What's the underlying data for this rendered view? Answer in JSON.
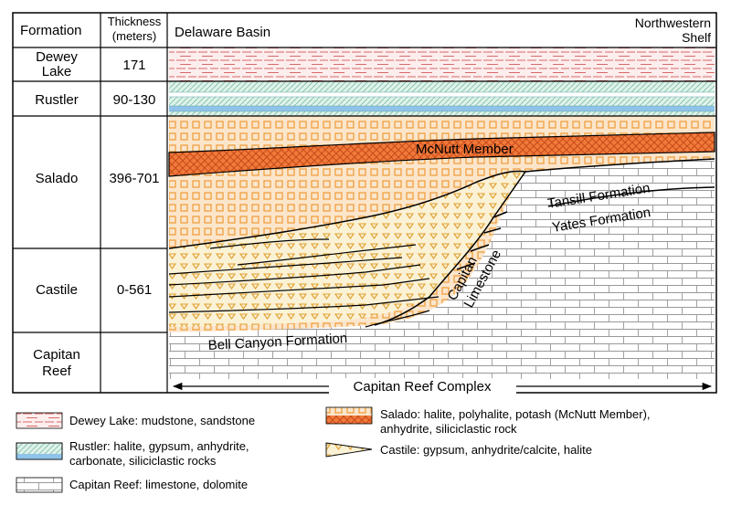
{
  "header": {
    "formation": "Formation",
    "thickness_line1": "Thickness",
    "thickness_line2": "(meters)",
    "left_region": "Delaware Basin",
    "right_region_line1": "Northwestern",
    "right_region_line2": "Shelf"
  },
  "formations": [
    {
      "name_lines": [
        "Dewey",
        "Lake"
      ],
      "thickness": "171"
    },
    {
      "name_lines": [
        "Rustler"
      ],
      "thickness": "90-130"
    },
    {
      "name_lines": [
        "Salado"
      ],
      "thickness": "396-701"
    },
    {
      "name_lines": [
        "Castile"
      ],
      "thickness": "0-561"
    },
    {
      "name_lines": [
        "Capitan",
        "Reef"
      ],
      "thickness": ""
    }
  ],
  "section_labels": {
    "mcnutt": "McNutt Member",
    "tansill": "Tansill Formation",
    "yates": "Yates Formation",
    "capitan_line1": "Capitan",
    "capitan_line2": "Limestone",
    "bell_canyon": "Bell Canyon Formation",
    "reef_complex": "Capitan Reef Complex"
  },
  "legend": {
    "dewey": "Dewey Lake: mudstone, sandstone",
    "rustler_line1": "Rustler: halite, gypsum, anhydrite,",
    "rustler_line2": "carbonate, siliciclastic rocks",
    "capitan": "Capitan Reef: limestone, dolomite",
    "salado_line1": "Salado: halite, polyhalite, potash (McNutt Member),",
    "salado_line2": "anhydrite, siliciclastic rock",
    "castile": "Castile: gypsum, anhydrite/calcite, halite"
  },
  "colors": {
    "salado_orange": "#f5a623",
    "mcnutt_orange": "#f07a3a",
    "castile_yellow": "#f7e6a8",
    "rustler_green": "#a8d8c8",
    "rustler_blue": "#8fc3ea",
    "dewey_red": "#e07070",
    "line": "#000000"
  }
}
